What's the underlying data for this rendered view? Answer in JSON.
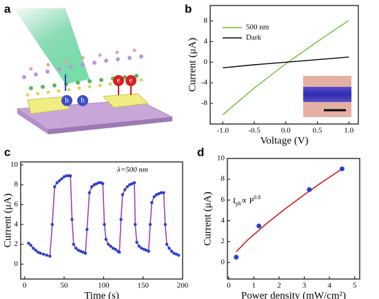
{
  "panels": [
    "a",
    "b",
    "c",
    "d"
  ],
  "schematic": {
    "labels": [
      "h",
      "h",
      "e",
      "e"
    ]
  },
  "chart_data": [
    {
      "type": "line",
      "xlabel": "Voltage (V)",
      "ylabel": "Current (μA)",
      "x": [
        -1,
        -0.5,
        0,
        0.5,
        1
      ],
      "series": [
        {
          "name": "500 nm",
          "color": "#66bb33",
          "values": [
            -10.2,
            -5,
            -0.3,
            4,
            8.1
          ]
        },
        {
          "name": "Dark",
          "color": "#000000",
          "values": [
            -1.1,
            -0.5,
            0,
            0.5,
            1
          ]
        }
      ],
      "xlim": [
        -1.2,
        1.15
      ],
      "ylim": [
        -12,
        11
      ],
      "xticks": [
        {
          "value": -1,
          "label": "-1.0"
        },
        -0.5,
        {
          "value": 0,
          "label": "0.0"
        },
        0.5,
        {
          "value": 1,
          "label": "1.0"
        }
      ],
      "yticks": [
        -8,
        -4,
        0,
        4,
        8
      ],
      "legend": "upper left"
    },
    {
      "type": "line",
      "xlabel": "Time (s)",
      "ylabel": "Current (μA)",
      "annotation": "λ=500 nm",
      "x": [
        5,
        8,
        11,
        14,
        17,
        20,
        24,
        28,
        32,
        35,
        38,
        41,
        44,
        47,
        50,
        53,
        56,
        58,
        60,
        62,
        65,
        68,
        71,
        74,
        77,
        79,
        82,
        85,
        88,
        91,
        94,
        97,
        99,
        101,
        103,
        106,
        109,
        112,
        115,
        118,
        120,
        122,
        124,
        127,
        130,
        133,
        136,
        139,
        140,
        142,
        145,
        148,
        151,
        154,
        157,
        159,
        161,
        164,
        167,
        170,
        173,
        176,
        178,
        180,
        183,
        186,
        189,
        192,
        195
      ],
      "series": [
        {
          "color": "#a040a8",
          "marker_color": "#2a3fd0",
          "values": [
            2.1,
            1.9,
            1.6,
            1.4,
            1.2,
            1.1,
            1.0,
            0.9,
            0.8,
            4.0,
            7.8,
            8.2,
            8.4,
            8.6,
            8.8,
            8.9,
            8.9,
            8.9,
            4.5,
            2.0,
            1.6,
            1.4,
            1.3,
            1.2,
            1.1,
            3.5,
            7.2,
            7.8,
            8.0,
            8.1,
            8.2,
            8.2,
            8.1,
            4.0,
            2.5,
            2.0,
            1.8,
            1.6,
            1.5,
            1.3,
            1.2,
            4.5,
            7.0,
            7.5,
            7.8,
            8.0,
            8.1,
            8.2,
            4.0,
            2.2,
            1.8,
            1.6,
            1.5,
            1.4,
            1.3,
            4.0,
            6.2,
            6.8,
            7.0,
            7.1,
            7.2,
            7.2,
            4.0,
            2.0,
            1.6,
            1.3,
            1.1,
            1.0,
            0.9
          ]
        }
      ],
      "xlim": [
        -5,
        200
      ],
      "ylim": [
        -1.5,
        10.3
      ],
      "xticks": [
        0,
        50,
        100,
        150,
        200
      ],
      "yticks": [
        0,
        2,
        4,
        6,
        8,
        10
      ]
    },
    {
      "type": "scatter",
      "xlabel": "Power density (mW/cm²)",
      "ylabel": "Current (μA)",
      "annotation": {
        "base": "I",
        "sub": "ph",
        "mid": "∝ P",
        "sup": "0.8"
      },
      "series": [
        {
          "color": "#d01818",
          "line": true,
          "x": [
            0.3,
            0.75,
            1.5,
            2.25,
            3,
            3.75,
            4.5
          ],
          "values": [
            1.03,
            2.14,
            3.73,
            5.17,
            6.51,
            7.79,
            9.0
          ]
        },
        {
          "color": "#2a3fd0",
          "x": [
            0.3,
            1.2,
            3.2,
            4.5
          ],
          "values": [
            0.5,
            3.5,
            7.0,
            9.0
          ]
        }
      ],
      "xlim": [
        -0.05,
        5.2
      ],
      "ylim": [
        -1.6,
        10
      ],
      "xticks": [
        0,
        1,
        2,
        3,
        4,
        5
      ],
      "yticks": [
        0,
        2,
        4,
        6,
        8,
        10
      ]
    }
  ]
}
